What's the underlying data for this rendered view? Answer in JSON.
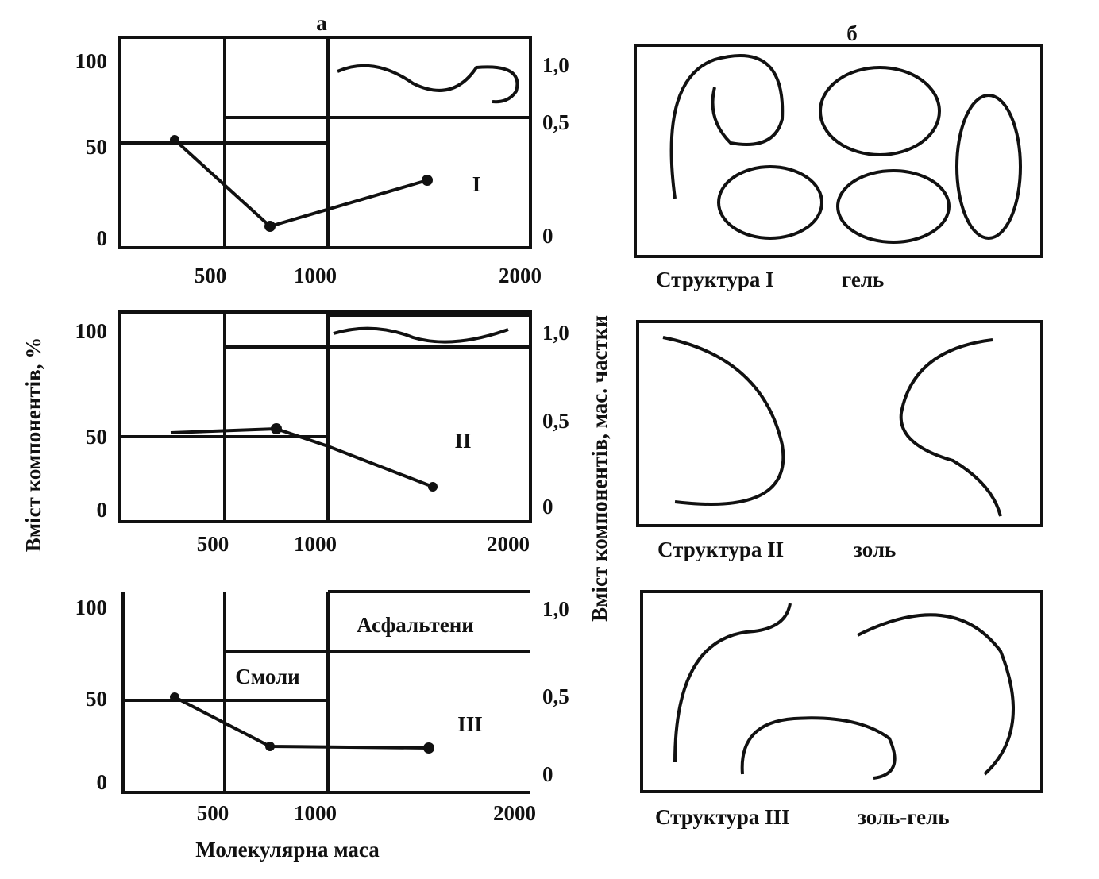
{
  "panel_a": {
    "label": "а",
    "y_label": "Вміст  компонентів, %",
    "y2_label": "Вміст  компонентів, мас. частки",
    "x_label": "Молекулярна маса",
    "plots": [
      {
        "roman": "I",
        "yticks": [
          "100",
          "50",
          "0"
        ],
        "y2ticks": [
          "1,0",
          "0,5",
          "0"
        ],
        "xticks": [
          "500",
          "1000",
          "2000"
        ]
      },
      {
        "roman": "II",
        "yticks": [
          "100",
          "50",
          "0"
        ],
        "y2ticks": [
          "1,0",
          "0,5",
          "0"
        ],
        "xticks": [
          "500",
          "1000",
          "2000"
        ]
      },
      {
        "roman": "III",
        "yticks": [
          "100",
          "50",
          "0"
        ],
        "y2ticks": [
          "1,0",
          "0,5",
          "0"
        ],
        "xticks": [
          "500",
          "1000",
          "2000"
        ]
      }
    ],
    "annotations": {
      "asphaltenes": "Асфальтени",
      "resins": "Смоли"
    }
  },
  "panel_b": {
    "label": "б",
    "structures": [
      {
        "name": "Структура I",
        "state": "гель"
      },
      {
        "name": "Структура II",
        "state": "золь"
      },
      {
        "name": "Структура III",
        "state": "золь-гель"
      }
    ]
  }
}
